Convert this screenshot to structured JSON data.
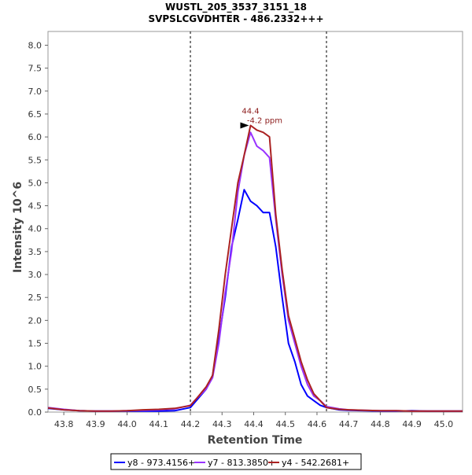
{
  "chart_data": {
    "type": "line",
    "title": "WUSTL_205_3537_3151_18",
    "subtitle": "SVPSLCGVDHTER - 486.2332+++",
    "xlabel": "Retention Time",
    "ylabel": "Intensity 10^6",
    "xlim": [
      43.75,
      45.06
    ],
    "ylim": [
      0,
      8.3
    ],
    "x_ticks": [
      "43.8",
      "43.9",
      "44.0",
      "44.1",
      "44.2",
      "44.3",
      "44.4",
      "44.5",
      "44.6",
      "44.7",
      "44.8",
      "44.9",
      "45.0"
    ],
    "y_ticks": [
      "0.0",
      "0.5",
      "1.0",
      "1.5",
      "2.0",
      "2.5",
      "3.0",
      "3.5",
      "4.0",
      "4.5",
      "5.0",
      "5.5",
      "6.0",
      "6.5",
      "7.0",
      "7.5",
      "8.0"
    ],
    "grid": false,
    "legend_position": "bottom",
    "integration_bounds": [
      44.2,
      44.63
    ],
    "annotation": {
      "x": 44.39,
      "y": 6.25,
      "rt_label": "44.4",
      "ppm_label": "-4.2 ppm"
    },
    "series": [
      {
        "name": "y8 - 973.4156+",
        "color": "#0000ff",
        "x": [
          43.75,
          43.8,
          43.85,
          43.9,
          43.95,
          44.0,
          44.05,
          44.1,
          44.15,
          44.2,
          44.25,
          44.27,
          44.29,
          44.31,
          44.33,
          44.35,
          44.37,
          44.39,
          44.41,
          44.43,
          44.45,
          44.47,
          44.49,
          44.51,
          44.53,
          44.55,
          44.57,
          44.59,
          44.61,
          44.63,
          44.67,
          44.7,
          44.75,
          44.8,
          44.85,
          44.9,
          44.95,
          45.0,
          45.06
        ],
        "y": [
          0.08,
          0.05,
          0.03,
          0.02,
          0.02,
          0.02,
          0.02,
          0.02,
          0.03,
          0.1,
          0.5,
          0.8,
          1.6,
          2.5,
          3.6,
          4.2,
          4.85,
          4.6,
          4.5,
          4.35,
          4.35,
          3.6,
          2.5,
          1.5,
          1.1,
          0.6,
          0.35,
          0.25,
          0.15,
          0.1,
          0.05,
          0.04,
          0.03,
          0.02,
          0.02,
          0.03,
          0.02,
          0.02,
          0.02
        ]
      },
      {
        "name": "y7 - 813.3850+",
        "color": "#9933ff",
        "x": [
          43.75,
          43.8,
          43.85,
          43.9,
          43.95,
          44.0,
          44.05,
          44.1,
          44.15,
          44.2,
          44.22,
          44.25,
          44.27,
          44.29,
          44.31,
          44.33,
          44.35,
          44.37,
          44.39,
          44.41,
          44.43,
          44.45,
          44.47,
          44.49,
          44.51,
          44.53,
          44.55,
          44.57,
          44.59,
          44.61,
          44.63,
          44.67,
          44.7,
          44.75,
          44.8,
          44.85,
          44.9,
          44.95,
          45.0,
          45.06
        ],
        "y": [
          0.1,
          0.06,
          0.03,
          0.02,
          0.02,
          0.03,
          0.04,
          0.05,
          0.07,
          0.15,
          0.3,
          0.5,
          0.75,
          1.5,
          2.6,
          3.5,
          4.8,
          5.6,
          6.1,
          5.8,
          5.7,
          5.55,
          4.2,
          3.0,
          2.0,
          1.5,
          1.0,
          0.6,
          0.35,
          0.25,
          0.12,
          0.07,
          0.05,
          0.04,
          0.03,
          0.03,
          0.02,
          0.02,
          0.02,
          0.02
        ]
      },
      {
        "name": "y4 - 542.2681+",
        "color": "#aa2222",
        "x": [
          43.75,
          43.8,
          43.85,
          43.9,
          43.95,
          44.0,
          44.05,
          44.1,
          44.15,
          44.2,
          44.22,
          44.25,
          44.27,
          44.29,
          44.31,
          44.33,
          44.35,
          44.37,
          44.39,
          44.41,
          44.43,
          44.45,
          44.47,
          44.49,
          44.51,
          44.53,
          44.55,
          44.57,
          44.59,
          44.61,
          44.63,
          44.67,
          44.7,
          44.75,
          44.8,
          44.85,
          44.9,
          44.95,
          45.0,
          45.06
        ],
        "y": [
          0.09,
          0.05,
          0.03,
          0.02,
          0.02,
          0.03,
          0.05,
          0.06,
          0.08,
          0.14,
          0.3,
          0.55,
          0.8,
          1.8,
          3.0,
          4.0,
          5.0,
          5.6,
          6.25,
          6.15,
          6.1,
          6.0,
          4.3,
          3.1,
          2.1,
          1.6,
          1.1,
          0.7,
          0.4,
          0.25,
          0.1,
          0.06,
          0.05,
          0.04,
          0.03,
          0.03,
          0.02,
          0.02,
          0.02,
          0.02
        ]
      }
    ]
  }
}
